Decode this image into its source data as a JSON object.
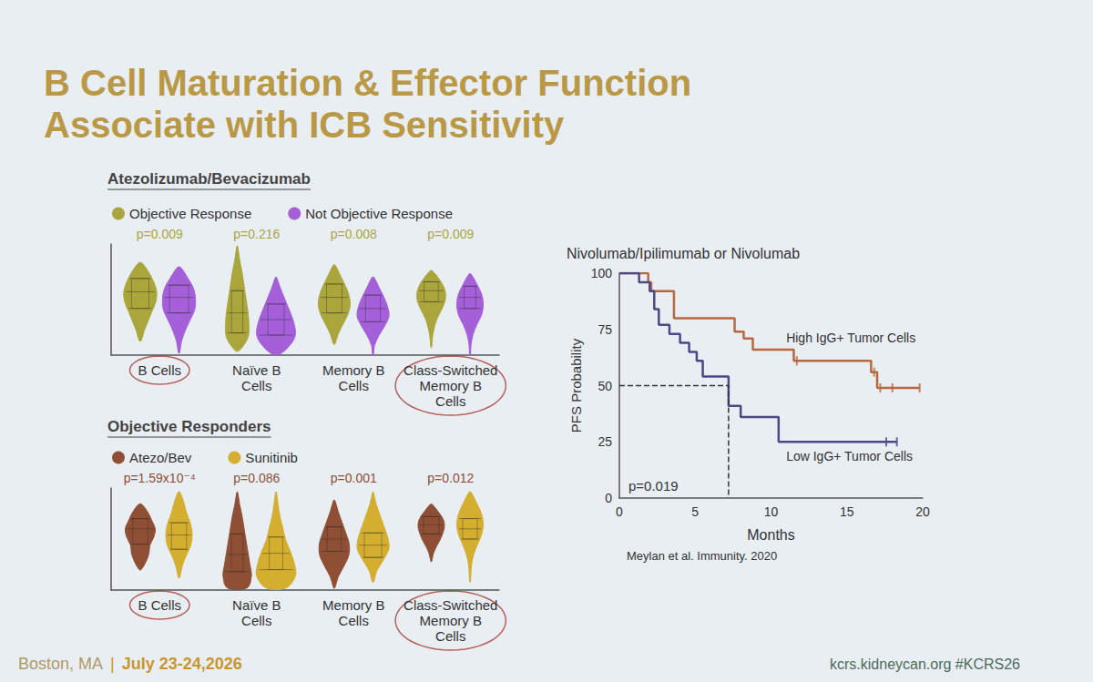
{
  "title": "B Cell Maturation & Effector Function Associate with ICB Sensitivity",
  "footer": {
    "left": [
      "Boston, MA",
      "|",
      "July 23-24,2026"
    ],
    "right": "kcrs.kidneycan.org #KCRS26"
  },
  "chart_data": [
    {
      "type": "violin",
      "title": "Atezolizumab/Bevacizumab",
      "legend": "top left",
      "grid": false,
      "tick_labels": "x",
      "categories": [
        "B Cells",
        "Naïve B Cells",
        "Memory B Cells",
        "Class-Switched Memory B Cells"
      ],
      "annotations": [
        "p=0.009",
        "p=0.216",
        "p=0.008",
        "p=0.009"
      ],
      "ylim": [
        0,
        100
      ],
      "series": [
        {
          "name": "Objective Response",
          "color": "#aaa63c",
          "values": [
            {
              "range": [
                13,
                83
              ],
              "density": [
                0.05,
                0.2,
                0.4,
                0.6,
                0.8,
                0.85,
                0.7,
                0.45,
                0.08
              ],
              "quartiles": [
                42,
                57,
                69
              ]
            },
            {
              "range": [
                4,
                98
              ],
              "density": [
                0.1,
                0.55,
                0.6,
                0.55,
                0.45,
                0.35,
                0.25,
                0.12,
                0.02
              ],
              "quartiles": [
                20,
                38,
                58
              ]
            },
            {
              "range": [
                10,
                81
              ],
              "density": [
                0.04,
                0.2,
                0.45,
                0.7,
                0.82,
                0.75,
                0.55,
                0.3,
                0.05
              ],
              "quartiles": [
                38,
                52,
                64
              ]
            },
            {
              "range": [
                7,
                76
              ],
              "density": [
                0.02,
                0.06,
                0.15,
                0.3,
                0.55,
                0.73,
                0.7,
                0.45,
                0.05
              ],
              "quartiles": [
                48,
                58,
                66
              ]
            }
          ]
        },
        {
          "name": "Not Objective Response",
          "color": "#a45fd9",
          "values": [
            {
              "range": [
                2,
                79
              ],
              "density": [
                0.03,
                0.12,
                0.3,
                0.55,
                0.8,
                0.85,
                0.75,
                0.45,
                0.08
              ],
              "quartiles": [
                38,
                52,
                63
              ]
            },
            {
              "range": [
                1,
                70
              ],
              "density": [
                0.2,
                0.75,
                1.0,
                0.95,
                0.8,
                0.6,
                0.4,
                0.2,
                0.03
              ],
              "quartiles": [
                18,
                32,
                46
              ]
            },
            {
              "range": [
                0,
                70
              ],
              "density": [
                0.02,
                0.08,
                0.3,
                0.6,
                0.82,
                0.75,
                0.55,
                0.3,
                0.05
              ],
              "quartiles": [
                30,
                42,
                54
              ]
            },
            {
              "range": [
                0,
                73
              ],
              "density": [
                0.02,
                0.05,
                0.15,
                0.35,
                0.6,
                0.68,
                0.6,
                0.35,
                0.05
              ],
              "quartiles": [
                42,
                52,
                62
              ]
            }
          ]
        }
      ]
    },
    {
      "type": "violin",
      "title": "Objective Responders",
      "legend": "top left",
      "grid": false,
      "tick_labels": "x",
      "categories": [
        "B Cells",
        "Naïve B Cells",
        "Memory B Cells",
        "Class-Switched Memory B Cells"
      ],
      "annotations": [
        "p=1.59x10⁻⁴",
        "p=0.086",
        "p=0.001",
        "p=0.012"
      ],
      "ylim": [
        0,
        100
      ],
      "series": [
        {
          "name": "Atezo/Bev",
          "color": "#8e4f35",
          "values": [
            {
              "range": [
                20,
                84
              ],
              "density": [
                0.05,
                0.3,
                0.45,
                0.5,
                0.7,
                0.77,
                0.6,
                0.4,
                0.08
              ],
              "quartiles": [
                45,
                60,
                70
              ]
            },
            {
              "range": [
                2,
                96
              ],
              "density": [
                0.5,
                0.73,
                0.65,
                0.55,
                0.45,
                0.35,
                0.25,
                0.12,
                0.02
              ],
              "quartiles": [
                18,
                35,
                55
              ]
            },
            {
              "range": [
                2,
                88
              ],
              "density": [
                0.03,
                0.2,
                0.5,
                0.75,
                0.77,
                0.6,
                0.4,
                0.2,
                0.03
              ],
              "quartiles": [
                38,
                50,
                62
              ]
            },
            {
              "range": [
                28,
                84
              ],
              "density": [
                0.02,
                0.1,
                0.25,
                0.45,
                0.6,
                0.68,
                0.6,
                0.35,
                0.05
              ],
              "quartiles": [
                55,
                64,
                72
              ]
            }
          ]
        },
        {
          "name": "Sunitinib",
          "color": "#d4ae2f",
          "values": [
            {
              "range": [
                12,
                96
              ],
              "density": [
                0.03,
                0.15,
                0.35,
                0.6,
                0.68,
                0.6,
                0.4,
                0.25,
                0.05
              ],
              "quartiles": [
                40,
                54,
                66
              ]
            },
            {
              "range": [
                2,
                96
              ],
              "density": [
                0.5,
                1.0,
                0.95,
                0.75,
                0.5,
                0.35,
                0.2,
                0.1,
                0.02
              ],
              "quartiles": [
                20,
                36,
                52
              ]
            },
            {
              "range": [
                8,
                96
              ],
              "density": [
                0.03,
                0.2,
                0.55,
                0.82,
                0.75,
                0.55,
                0.35,
                0.15,
                0.02
              ],
              "quartiles": [
                32,
                44,
                56
              ]
            },
            {
              "range": [
                8,
                96
              ],
              "density": [
                0.02,
                0.05,
                0.12,
                0.3,
                0.55,
                0.68,
                0.6,
                0.35,
                0.05
              ],
              "quartiles": [
                50,
                60,
                70
              ]
            }
          ]
        }
      ]
    },
    {
      "type": "line",
      "title": "Nivolumab/Ipilimumab or Nivolumab",
      "grid": false,
      "x_label": "Months",
      "y_label": "PFS Probability",
      "xlim": [
        0,
        20
      ],
      "xticks": [
        0,
        5,
        10,
        15,
        20
      ],
      "ylim": [
        0,
        100
      ],
      "yticks": [
        0,
        25,
        50,
        75,
        100
      ],
      "annotations": [
        "p=0.019"
      ],
      "source": "Meylan et al. Immunity. 2020",
      "reference": {
        "x": 7.2,
        "y": 50,
        "line_style": "dashed"
      },
      "series": [
        {
          "name": "High IgG+ Tumor Cells",
          "color": "#b8683e",
          "line_style": "solid",
          "x": [
            0,
            1.9,
            2.1,
            3.6,
            7.6,
            8.2,
            8.8,
            11.5,
            16.6,
            17.0,
            19.8
          ],
          "values": [
            100,
            96,
            92,
            80,
            74,
            71,
            66,
            61,
            56,
            49,
            49
          ],
          "censored": [
            11.7,
            16.8,
            17.2,
            18.0,
            19.8
          ]
        },
        {
          "name": "Low IgG+ Tumor Cells",
          "color": "#4a4985",
          "line_style": "solid",
          "x": [
            0,
            1.3,
            2.0,
            2.3,
            2.6,
            3.3,
            4.0,
            4.6,
            5.1,
            5.5,
            7.2,
            8.0,
            10.5,
            18.3
          ],
          "values": [
            100,
            96,
            92,
            84,
            77,
            73,
            69,
            65,
            61,
            54,
            41,
            36,
            25,
            25
          ],
          "censored": [
            17.6,
            18.3
          ]
        }
      ]
    }
  ]
}
